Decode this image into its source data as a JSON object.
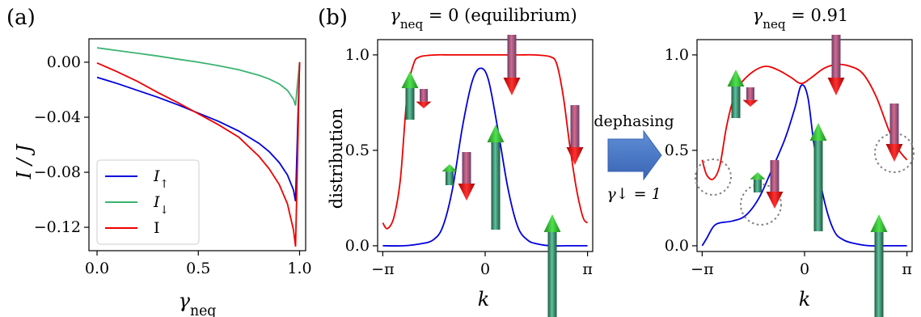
{
  "figure": {
    "label_a": "(a)",
    "label_b": "(b)",
    "dephasing_label": "dephasing",
    "gamma_down_label": "γ↓ = 1"
  },
  "chart_data": [
    {
      "type": "line",
      "panel": "a",
      "xlabel": "γneq",
      "ylabel": "I / J",
      "xlim": [
        -0.04,
        1.03
      ],
      "ylim": [
        -0.137,
        0.017
      ],
      "xticks": [
        0.0,
        0.5,
        1.0
      ],
      "xtick_labels": [
        "0.0",
        "0.5",
        "1.0"
      ],
      "yticks": [
        0.0,
        -0.04,
        -0.08,
        -0.12
      ],
      "ytick_labels": [
        "0.00",
        "−0.04",
        "−0.08",
        "−0.12"
      ],
      "grid": false,
      "legend_position": "lower-left",
      "series": [
        {
          "name": "I↑",
          "color": "#0000dd",
          "x": [
            0.0,
            0.1,
            0.2,
            0.3,
            0.4,
            0.5,
            0.6,
            0.7,
            0.8,
            0.85,
            0.9,
            0.94,
            0.97,
            0.98,
            0.99,
            1.0
          ],
          "y": [
            -0.011,
            -0.0155,
            -0.0205,
            -0.0255,
            -0.031,
            -0.037,
            -0.043,
            -0.05,
            -0.059,
            -0.065,
            -0.073,
            -0.082,
            -0.093,
            -0.101,
            -0.05,
            0.0
          ]
        },
        {
          "name": "I↓",
          "color": "#3cb371",
          "x": [
            0.0,
            0.1,
            0.2,
            0.3,
            0.4,
            0.5,
            0.6,
            0.7,
            0.8,
            0.85,
            0.9,
            0.94,
            0.97,
            0.98,
            0.99,
            1.0
          ],
          "y": [
            0.0105,
            0.0085,
            0.0065,
            0.0045,
            0.0022,
            0.0,
            -0.0025,
            -0.0055,
            -0.0095,
            -0.0122,
            -0.0158,
            -0.0205,
            -0.027,
            -0.0315,
            -0.015,
            0.0
          ]
        },
        {
          "name": "I",
          "color": "#ee0000",
          "x": [
            0.0,
            0.1,
            0.2,
            0.3,
            0.4,
            0.5,
            0.6,
            0.7,
            0.8,
            0.85,
            0.9,
            0.94,
            0.97,
            0.98,
            0.99,
            1.0
          ],
          "y": [
            -0.0005,
            -0.007,
            -0.014,
            -0.022,
            -0.0295,
            -0.0375,
            -0.0455,
            -0.0545,
            -0.0685,
            -0.0775,
            -0.089,
            -0.103,
            -0.122,
            -0.134,
            -0.07,
            0.0
          ]
        }
      ]
    },
    {
      "type": "line",
      "panel": "b-left",
      "title": "γneq = 0 (equilibrium)",
      "xlabel": "k",
      "ylabel": "distribution",
      "xlim": [
        -3.3,
        3.3
      ],
      "ylim": [
        -0.03,
        1.08
      ],
      "xticks": [
        -3.14159,
        0,
        3.14159
      ],
      "xtick_labels": [
        "−π",
        "0",
        "π"
      ],
      "yticks": [
        0.0,
        0.5,
        1.0
      ],
      "ytick_labels": [
        "0.0",
        "0.5",
        "1.0"
      ],
      "series": [
        {
          "color": "#ee0000",
          "x": [
            -3.14,
            -3.0,
            -2.8,
            -2.6,
            -2.4,
            -2.2,
            -2.0,
            -1.5,
            -1.0,
            0.0,
            1.0,
            1.5,
            2.0,
            2.2,
            2.4,
            2.6,
            2.8,
            3.0,
            3.14
          ],
          "y": [
            0.12,
            0.09,
            0.15,
            0.35,
            0.78,
            0.95,
            0.99,
            1.0,
            1.0,
            1.0,
            1.0,
            1.0,
            0.99,
            0.95,
            0.78,
            0.52,
            0.3,
            0.15,
            0.12
          ]
        },
        {
          "color": "#0000dd",
          "x": [
            -3.14,
            -2.5,
            -2.0,
            -1.6,
            -1.3,
            -1.0,
            -0.7,
            -0.4,
            -0.15,
            0.1,
            0.4,
            0.7,
            1.0,
            1.3,
            1.6,
            2.0,
            2.5,
            3.14
          ],
          "y": [
            0.0,
            0.0,
            0.01,
            0.03,
            0.1,
            0.3,
            0.62,
            0.86,
            0.93,
            0.87,
            0.6,
            0.3,
            0.1,
            0.03,
            0.01,
            0.0,
            0.0,
            0.0
          ]
        }
      ]
    },
    {
      "type": "line",
      "panel": "b-right",
      "title": "γneq = 0.91",
      "xlabel": "k",
      "xlim": [
        -3.3,
        3.3
      ],
      "ylim": [
        -0.03,
        1.08
      ],
      "xticks": [
        -3.14159,
        0,
        3.14159
      ],
      "xtick_labels": [
        "−π",
        "0",
        "π"
      ],
      "yticks": [
        0.0,
        0.5,
        1.0
      ],
      "ytick_labels": [
        "0.0",
        "0.5",
        "1.0"
      ],
      "series": [
        {
          "color": "#ee0000",
          "x": [
            -3.14,
            -3.0,
            -2.8,
            -2.6,
            -2.4,
            -2.2,
            -2.0,
            -1.6,
            -1.2,
            -0.8,
            -0.4,
            -0.1,
            0.2,
            0.6,
            1.0,
            1.4,
            1.8,
            2.2,
            2.6,
            2.9,
            3.14
          ],
          "y": [
            0.45,
            0.37,
            0.35,
            0.42,
            0.62,
            0.76,
            0.84,
            0.91,
            0.94,
            0.92,
            0.88,
            0.85,
            0.88,
            0.93,
            0.95,
            0.94,
            0.9,
            0.78,
            0.6,
            0.5,
            0.45
          ]
        },
        {
          "color": "#0000dd",
          "x": [
            -3.14,
            -3.0,
            -2.8,
            -2.6,
            -2.2,
            -1.8,
            -1.4,
            -1.0,
            -0.6,
            -0.3,
            -0.1,
            0.1,
            0.3,
            0.6,
            0.9,
            1.2,
            1.6,
            2.0,
            2.5,
            3.14
          ],
          "y": [
            0.0,
            0.04,
            0.1,
            0.12,
            0.13,
            0.16,
            0.25,
            0.4,
            0.56,
            0.72,
            0.84,
            0.78,
            0.52,
            0.24,
            0.08,
            0.03,
            0.01,
            0.0,
            0.0,
            0.0
          ]
        }
      ]
    }
  ]
}
